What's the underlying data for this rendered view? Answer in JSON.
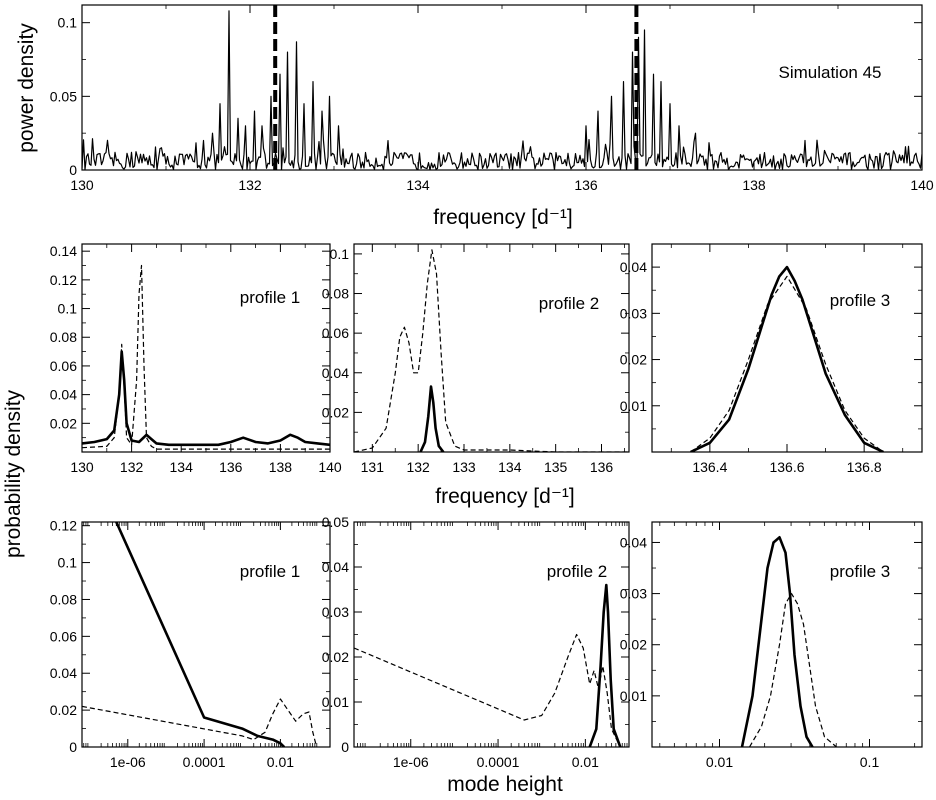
{
  "figure": {
    "frequency_label": "frequency [d⁻¹]",
    "probability_label": "probability density",
    "mode_height_label": "mode height"
  },
  "chart_data": [
    {
      "id": "top",
      "type": "line",
      "title": "",
      "label": "Simulation 45",
      "xlabel": "frequency [d⁻¹]",
      "ylabel": "power density",
      "xscale": "linear",
      "xlim": [
        130,
        140
      ],
      "ylim": [
        0,
        0.112
      ],
      "xticks": [
        130,
        132,
        134,
        136,
        138,
        140
      ],
      "xtick_labels": [
        "130",
        "132",
        "134",
        "136",
        "138",
        "140"
      ],
      "yticks": [
        0,
        0.05,
        0.1
      ],
      "ytick_labels": [
        "0",
        "0.05",
        "0.1"
      ],
      "vlines": [
        132.3,
        136.6
      ],
      "series": [
        {
          "name": "power spectrum",
          "style": "solid",
          "width": 1.2,
          "peaks": [
            [
              131.45,
              0.02
            ],
            [
              131.55,
              0.025
            ],
            [
              131.65,
              0.045
            ],
            [
              131.75,
              0.108
            ],
            [
              131.85,
              0.035
            ],
            [
              131.95,
              0.03
            ],
            [
              132.05,
              0.04
            ],
            [
              132.15,
              0.03
            ],
            [
              132.25,
              0.05
            ],
            [
              132.35,
              0.065
            ],
            [
              132.45,
              0.08
            ],
            [
              132.55,
              0.087
            ],
            [
              132.65,
              0.045
            ],
            [
              132.75,
              0.06
            ],
            [
              132.85,
              0.04
            ],
            [
              132.95,
              0.05
            ],
            [
              133.05,
              0.03
            ],
            [
              136.0,
              0.03
            ],
            [
              136.15,
              0.04
            ],
            [
              136.3,
              0.05
            ],
            [
              136.45,
              0.06
            ],
            [
              136.55,
              0.08
            ],
            [
              136.62,
              0.09
            ],
            [
              136.7,
              0.095
            ],
            [
              136.8,
              0.065
            ],
            [
              136.9,
              0.06
            ],
            [
              137.0,
              0.045
            ],
            [
              137.1,
              0.03
            ],
            [
              137.3,
              0.025
            ],
            [
              138.6,
              0.02
            ]
          ],
          "noise_level": 0.012
        }
      ]
    },
    {
      "id": "freq1",
      "type": "line",
      "label": "profile 1",
      "xlabel": "frequency [d⁻¹]",
      "ylabel": "probability density",
      "xscale": "linear",
      "xlim": [
        130,
        140
      ],
      "ylim": [
        0,
        0.145
      ],
      "xticks": [
        130,
        132,
        134,
        136,
        138,
        140
      ],
      "xtick_labels": [
        "130",
        "132",
        "134",
        "136",
        "138",
        "140"
      ],
      "yticks": [
        0.02,
        0.04,
        0.06,
        0.08,
        0.1,
        0.12,
        0.14
      ],
      "ytick_labels": [
        "0.02",
        "0.04",
        "0.06",
        "0.08",
        "0.1",
        "0.12",
        "0.14"
      ],
      "series": [
        {
          "name": "solid",
          "style": "solid",
          "width": 2.6,
          "x": [
            130.0,
            130.5,
            131.0,
            131.3,
            131.5,
            131.6,
            131.7,
            131.8,
            132.0,
            132.3,
            132.6,
            132.8,
            133.0,
            133.5,
            134.5,
            135.5,
            136.0,
            136.5,
            137.0,
            137.5,
            138.0,
            138.4,
            138.7,
            139.0,
            139.5,
            140.0
          ],
          "y": [
            0.006,
            0.007,
            0.009,
            0.015,
            0.04,
            0.07,
            0.05,
            0.02,
            0.008,
            0.007,
            0.012,
            0.009,
            0.006,
            0.005,
            0.005,
            0.005,
            0.007,
            0.01,
            0.007,
            0.006,
            0.008,
            0.012,
            0.01,
            0.007,
            0.006,
            0.005
          ]
        },
        {
          "name": "dashed",
          "style": "dashed",
          "width": 1.2,
          "x": [
            130.0,
            131.0,
            131.3,
            131.5,
            131.6,
            131.7,
            131.8,
            132.0,
            132.2,
            132.3,
            132.4,
            132.5,
            132.6,
            132.8,
            133.0,
            134.0,
            136.0,
            138.0,
            140.0
          ],
          "y": [
            0.003,
            0.004,
            0.01,
            0.04,
            0.075,
            0.045,
            0.01,
            0.005,
            0.05,
            0.11,
            0.13,
            0.06,
            0.01,
            0.004,
            0.002,
            0.002,
            0.002,
            0.002,
            0.002
          ]
        }
      ]
    },
    {
      "id": "freq2",
      "type": "line",
      "label": "profile 2",
      "xscale": "linear",
      "xlim": [
        130.6,
        136.6
      ],
      "ylim": [
        0,
        0.105
      ],
      "xticks": [
        131,
        132,
        133,
        134,
        135,
        136
      ],
      "xtick_labels": [
        "131",
        "132",
        "133",
        "134",
        "135",
        "136"
      ],
      "yticks": [
        0.02,
        0.04,
        0.06,
        0.08,
        0.1
      ],
      "ytick_labels": [
        "0.02",
        "0.04",
        "0.06",
        "0.08",
        "0.1"
      ],
      "series": [
        {
          "name": "solid",
          "style": "solid",
          "width": 2.6,
          "x": [
            132.05,
            132.15,
            132.22,
            132.28,
            132.33,
            132.38,
            132.45,
            132.55
          ],
          "y": [
            0.0,
            0.005,
            0.018,
            0.033,
            0.025,
            0.012,
            0.003,
            0.0
          ]
        },
        {
          "name": "dashed",
          "style": "dashed",
          "width": 1.2,
          "x": [
            130.6,
            131.0,
            131.3,
            131.5,
            131.6,
            131.7,
            131.8,
            131.9,
            132.0,
            132.1,
            132.2,
            132.3,
            132.4,
            132.5,
            132.6,
            132.8,
            133.0,
            134.0,
            135.0,
            136.6
          ],
          "y": [
            0.0,
            0.002,
            0.012,
            0.04,
            0.058,
            0.063,
            0.055,
            0.04,
            0.04,
            0.06,
            0.085,
            0.102,
            0.09,
            0.05,
            0.015,
            0.003,
            0.001,
            0.001,
            0.0,
            0.0
          ]
        }
      ]
    },
    {
      "id": "freq3",
      "type": "line",
      "label": "profile 3",
      "xscale": "linear",
      "xlim": [
        136.25,
        136.95
      ],
      "ylim": [
        0,
        0.045
      ],
      "xticks": [
        136.4,
        136.6,
        136.8
      ],
      "xtick_labels": [
        "136.4",
        "136.6",
        "136.8"
      ],
      "yticks": [
        0.01,
        0.02,
        0.03,
        0.04
      ],
      "ytick_labels": [
        "0.01",
        "0.02",
        "0.03",
        "0.04"
      ],
      "series": [
        {
          "name": "solid",
          "style": "solid",
          "width": 2.6,
          "x": [
            136.35,
            136.4,
            136.45,
            136.5,
            136.53,
            136.56,
            136.58,
            136.6,
            136.62,
            136.64,
            136.67,
            136.7,
            136.75,
            136.8,
            136.85
          ],
          "y": [
            0.0,
            0.002,
            0.007,
            0.018,
            0.026,
            0.034,
            0.038,
            0.04,
            0.037,
            0.033,
            0.025,
            0.017,
            0.008,
            0.002,
            0.0
          ]
        },
        {
          "name": "dashed",
          "style": "dashed",
          "width": 1.2,
          "x": [
            136.35,
            136.4,
            136.45,
            136.5,
            136.55,
            136.6,
            136.65,
            136.7,
            136.75,
            136.8,
            136.85
          ],
          "y": [
            0.0,
            0.003,
            0.009,
            0.02,
            0.032,
            0.038,
            0.031,
            0.019,
            0.009,
            0.003,
            0.0
          ]
        }
      ]
    },
    {
      "id": "height1",
      "type": "line",
      "label": "profile 1",
      "xlabel": "mode height",
      "ylabel": "probability density",
      "xscale": "log",
      "xlim_log10": [
        -7.2,
        -0.7
      ],
      "ylim": [
        0,
        0.122
      ],
      "xticks_log10": [
        -6,
        -4,
        -2
      ],
      "xtick_labels": [
        "1e-06",
        "0.0001",
        "0.01"
      ],
      "yticks": [
        0,
        0.02,
        0.04,
        0.06,
        0.08,
        0.1,
        0.12
      ],
      "ytick_labels": [
        "0",
        "0.02",
        "0.04",
        "0.06",
        "0.08",
        "0.1",
        "0.12"
      ],
      "series": [
        {
          "name": "solid",
          "style": "solid",
          "width": 2.6,
          "logx": [
            -6.3,
            -4.0,
            -3.0,
            -2.6,
            -2.2,
            -2.0,
            -1.9
          ],
          "y": [
            0.122,
            0.016,
            0.01,
            0.006,
            0.004,
            0.002,
            0.0
          ]
        },
        {
          "name": "dashed",
          "style": "dashed",
          "width": 1.2,
          "logx": [
            -7.2,
            -3.0,
            -2.7,
            -2.4,
            -2.2,
            -2.0,
            -1.8,
            -1.6,
            -1.4,
            -1.25,
            -1.15,
            -1.05
          ],
          "y": [
            0.022,
            0.006,
            0.004,
            0.008,
            0.018,
            0.026,
            0.02,
            0.014,
            0.018,
            0.019,
            0.008,
            0.0
          ]
        }
      ]
    },
    {
      "id": "height2",
      "type": "line",
      "label": "profile 2",
      "xscale": "log",
      "xlim_log10": [
        -7.3,
        -1.0
      ],
      "ylim": [
        0,
        0.05
      ],
      "xticks_log10": [
        -6,
        -4,
        -2
      ],
      "xtick_labels": [
        "1e-06",
        "0.0001",
        "0.01"
      ],
      "yticks": [
        0,
        0.01,
        0.02,
        0.03,
        0.04,
        0.05
      ],
      "ytick_labels": [
        "0",
        "0.01",
        "0.02",
        "0.03",
        "0.04",
        "0.05"
      ],
      "series": [
        {
          "name": "solid",
          "style": "solid",
          "width": 2.6,
          "logx": [
            -1.9,
            -1.75,
            -1.65,
            -1.58,
            -1.52,
            -1.48,
            -1.42,
            -1.35,
            -1.2
          ],
          "y": [
            0.0,
            0.004,
            0.018,
            0.03,
            0.036,
            0.03,
            0.015,
            0.004,
            0.0
          ]
        },
        {
          "name": "dashed",
          "style": "dashed",
          "width": 1.2,
          "logx": [
            -7.3,
            -3.4,
            -3.0,
            -2.7,
            -2.4,
            -2.2,
            -2.05,
            -1.9,
            -1.8,
            -1.7,
            -1.6,
            -1.5,
            -1.4,
            -1.2
          ],
          "y": [
            0.022,
            0.006,
            0.007,
            0.012,
            0.02,
            0.025,
            0.022,
            0.014,
            0.017,
            0.013,
            0.018,
            0.012,
            0.004,
            0.0
          ]
        }
      ]
    },
    {
      "id": "height3",
      "type": "line",
      "label": "profile 3",
      "xscale": "log",
      "xlim_log10": [
        -2.45,
        -0.65
      ],
      "ylim": [
        0,
        0.044
      ],
      "xticks_log10": [
        -2,
        -1
      ],
      "xtick_labels": [
        "0.01",
        "0.1"
      ],
      "yticks": [
        0.01,
        0.02,
        0.03,
        0.04
      ],
      "ytick_labels": [
        "0.01",
        "0.02",
        "0.03",
        "0.04"
      ],
      "series": [
        {
          "name": "solid",
          "style": "solid",
          "width": 2.6,
          "logx": [
            -1.85,
            -1.78,
            -1.72,
            -1.68,
            -1.64,
            -1.6,
            -1.56,
            -1.53,
            -1.5,
            -1.46,
            -1.42,
            -1.38
          ],
          "y": [
            0.0,
            0.01,
            0.025,
            0.035,
            0.04,
            0.041,
            0.038,
            0.03,
            0.018,
            0.008,
            0.002,
            0.0
          ]
        },
        {
          "name": "dashed",
          "style": "dashed",
          "width": 1.2,
          "logx": [
            -1.8,
            -1.72,
            -1.66,
            -1.6,
            -1.56,
            -1.52,
            -1.48,
            -1.44,
            -1.4,
            -1.36,
            -1.3,
            -1.22
          ],
          "y": [
            0.0,
            0.004,
            0.01,
            0.02,
            0.028,
            0.03,
            0.028,
            0.024,
            0.016,
            0.008,
            0.002,
            0.0
          ]
        }
      ]
    }
  ]
}
